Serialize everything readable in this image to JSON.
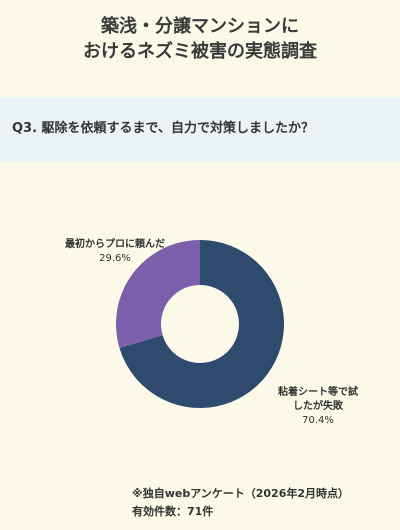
{
  "title": {
    "line1": "築浅・分譲マンションに",
    "line2": "おけるネズミ被害の実態調査"
  },
  "question": "Q3. 駆除を依頼するまで、自力で対策しましたか？",
  "chart_data": {
    "type": "pie",
    "style": "donut",
    "title": "Q3. 駆除を依頼するまで、自力で対策しましたか？",
    "slices": [
      {
        "label_line1": "粘着シート等で試",
        "label_line2": "したが失敗",
        "value": 70.4,
        "value_label": "70.4%",
        "color": "#2E4A6E"
      },
      {
        "label_line1": "最初からプロに頼んだ",
        "label_line2": "",
        "value": 29.6,
        "value_label": "29.6%",
        "color": "#7C5FAB"
      }
    ],
    "legend": "none"
  },
  "footnote": {
    "line1": "※独自webアンケート（2026年2月時点）",
    "line2": "有効件数：71件"
  }
}
